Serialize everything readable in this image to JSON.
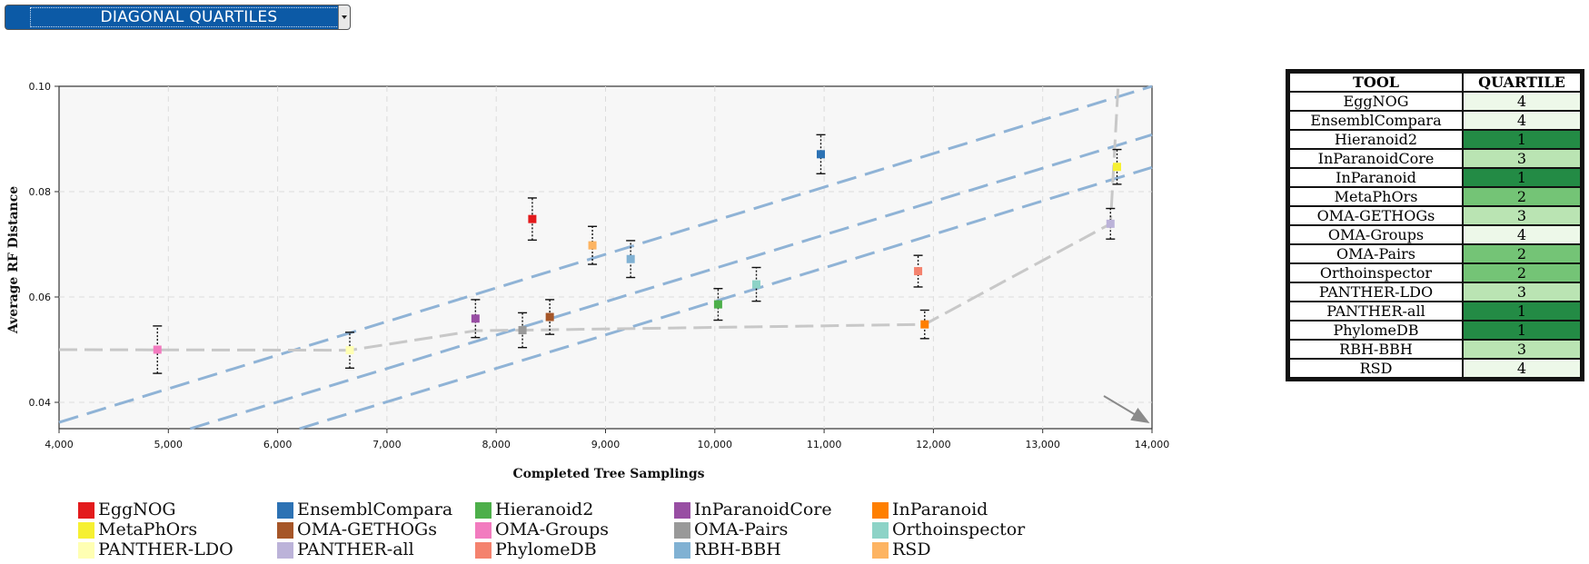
{
  "selector": {
    "label": "DIAGONAL QUARTILES"
  },
  "chart_data": {
    "type": "scatter",
    "title": "",
    "xlabel": "Completed Tree Samplings",
    "ylabel": "Average RF Distance",
    "xlim": [
      4000,
      14000
    ],
    "ylim": [
      0.035,
      0.1
    ],
    "x_ticks": [
      "4,000",
      "5,000",
      "6,000",
      "7,000",
      "8,000",
      "9,000",
      "10,000",
      "11,000",
      "12,000",
      "13,000",
      "14,000"
    ],
    "y_ticks": [
      "0.04",
      "0.06",
      "0.08",
      "0.10"
    ],
    "grid": true,
    "points": [
      {
        "name": "EggNOG",
        "color": "#e31a1c",
        "x": 8330,
        "y": 0.0748,
        "err": 0.004
      },
      {
        "name": "EnsemblCompara",
        "color": "#2c72b4",
        "x": 10970,
        "y": 0.0871,
        "err": 0.0037
      },
      {
        "name": "Hieranoid2",
        "color": "#4daf4a",
        "x": 10030,
        "y": 0.0586,
        "err": 0.003
      },
      {
        "name": "InParanoidCore",
        "color": "#984ea3",
        "x": 7810,
        "y": 0.0559,
        "err": 0.0036
      },
      {
        "name": "InParanoid",
        "color": "#ff7f00",
        "x": 11920,
        "y": 0.0548,
        "err": 0.0027
      },
      {
        "name": "MetaPhOrs",
        "color": "#f6f032",
        "x": 13680,
        "y": 0.0847,
        "err": 0.0033
      },
      {
        "name": "OMA-GETHOGs",
        "color": "#a65628",
        "x": 8490,
        "y": 0.0562,
        "err": 0.0033
      },
      {
        "name": "OMA-Groups",
        "color": "#f27bbf",
        "x": 4900,
        "y": 0.05,
        "err": 0.0045
      },
      {
        "name": "OMA-Pairs",
        "color": "#999999",
        "x": 8240,
        "y": 0.0537,
        "err": 0.0033
      },
      {
        "name": "Orthoinspector",
        "color": "#8dd3c7",
        "x": 10380,
        "y": 0.0624,
        "err": 0.0032
      },
      {
        "name": "PANTHER-LDO",
        "color": "#ffffb3",
        "x": 6660,
        "y": 0.0499,
        "err": 0.0034
      },
      {
        "name": "PANTHER-all",
        "color": "#bcb3d9",
        "x": 13620,
        "y": 0.0739,
        "err": 0.0029
      },
      {
        "name": "PhylomeDB",
        "color": "#f4826e",
        "x": 11860,
        "y": 0.0649,
        "err": 0.003
      },
      {
        "name": "RBH-BBH",
        "color": "#80b1d3",
        "x": 9230,
        "y": 0.0672,
        "err": 0.0035
      },
      {
        "name": "RSD",
        "color": "#fdb462",
        "x": 8880,
        "y": 0.0698,
        "err": 0.0036
      }
    ],
    "pareto_frontier": [
      [
        4000,
        0.05
      ],
      [
        6660,
        0.0499
      ],
      [
        7810,
        0.0536
      ],
      [
        8240,
        0.0537
      ],
      [
        11920,
        0.0548
      ],
      [
        13620,
        0.0739
      ],
      [
        13690,
        0.1
      ]
    ],
    "quartile_lines": [
      [
        [
          4000,
          0.0362
        ],
        [
          14000,
          0.1
        ]
      ],
      [
        [
          5200,
          0.035
        ],
        [
          14000,
          0.0908
        ]
      ],
      [
        [
          6200,
          0.035
        ],
        [
          14000,
          0.0846
        ]
      ]
    ],
    "annotation": "arrow pointing to lower-right (better performance)"
  },
  "legend": [
    {
      "name": "EggNOG",
      "color": "#e31a1c"
    },
    {
      "name": "EnsemblCompara",
      "color": "#2c72b4"
    },
    {
      "name": "Hieranoid2",
      "color": "#4daf4a"
    },
    {
      "name": "InParanoidCore",
      "color": "#984ea3"
    },
    {
      "name": "InParanoid",
      "color": "#ff7f00"
    },
    {
      "name": "MetaPhOrs",
      "color": "#f6f032"
    },
    {
      "name": "OMA-GETHOGs",
      "color": "#a65628"
    },
    {
      "name": "OMA-Groups",
      "color": "#f27bbf"
    },
    {
      "name": "OMA-Pairs",
      "color": "#999999"
    },
    {
      "name": "Orthoinspector",
      "color": "#8dd3c7"
    },
    {
      "name": "PANTHER-LDO",
      "color": "#ffffb3"
    },
    {
      "name": "PANTHER-all",
      "color": "#bcb3d9"
    },
    {
      "name": "PhylomeDB",
      "color": "#f4826e"
    },
    {
      "name": "RBH-BBH",
      "color": "#80b1d3"
    },
    {
      "name": "RSD",
      "color": "#fdb462"
    }
  ],
  "table": {
    "headers": [
      "TOOL",
      "QUARTILE"
    ],
    "rows": [
      {
        "tool": "EggNOG",
        "quartile": "4"
      },
      {
        "tool": "EnsemblCompara",
        "quartile": "4"
      },
      {
        "tool": "Hieranoid2",
        "quartile": "1"
      },
      {
        "tool": "InParanoidCore",
        "quartile": "3"
      },
      {
        "tool": "InParanoid",
        "quartile": "1"
      },
      {
        "tool": "MetaPhOrs",
        "quartile": "2"
      },
      {
        "tool": "OMA-GETHOGs",
        "quartile": "3"
      },
      {
        "tool": "OMA-Groups",
        "quartile": "4"
      },
      {
        "tool": "OMA-Pairs",
        "quartile": "2"
      },
      {
        "tool": "Orthoinspector",
        "quartile": "2"
      },
      {
        "tool": "PANTHER-LDO",
        "quartile": "3"
      },
      {
        "tool": "PANTHER-all",
        "quartile": "1"
      },
      {
        "tool": "PhylomeDB",
        "quartile": "1"
      },
      {
        "tool": "RBH-BBH",
        "quartile": "3"
      },
      {
        "tool": "RSD",
        "quartile": "4"
      }
    ],
    "quartile_colors": {
      "1": "#238b45",
      "2": "#74c476",
      "3": "#bae4b3",
      "4": "#edf8e9"
    }
  }
}
